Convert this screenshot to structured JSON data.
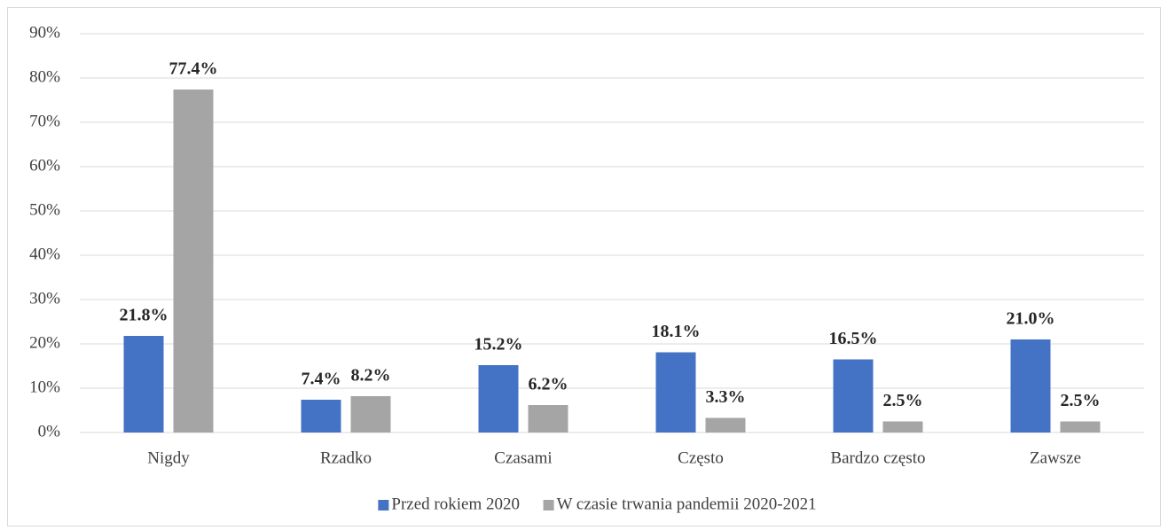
{
  "chart_data": {
    "type": "bar",
    "categories": [
      "Nigdy",
      "Rzadko",
      "Czasami",
      "Często",
      "Bardzo często",
      "Zawsze"
    ],
    "series": [
      {
        "name": "Przed rokiem 2020",
        "color": "#4472c4",
        "values": [
          21.8,
          7.4,
          15.2,
          18.1,
          16.5,
          21.0
        ],
        "value_labels": [
          "21.8%",
          "7.4%",
          "15.2%",
          "18.1%",
          "16.5%",
          "21.0%"
        ]
      },
      {
        "name": "W czasie trwania pandemii 2020-2021",
        "color": "#a5a5a5",
        "values": [
          77.4,
          8.2,
          6.2,
          3.3,
          2.5,
          2.5
        ],
        "value_labels": [
          "77.4%",
          "8.2%",
          "6.2%",
          "3.3%",
          "2.5%",
          "2.5%"
        ]
      }
    ],
    "ylim": [
      0,
      90
    ],
    "yticks": [
      {
        "value": 0,
        "label": "0%"
      },
      {
        "value": 10,
        "label": "10%"
      },
      {
        "value": 20,
        "label": "20%"
      },
      {
        "value": 30,
        "label": "30%"
      },
      {
        "value": 40,
        "label": "40%"
      },
      {
        "value": 50,
        "label": "50%"
      },
      {
        "value": 60,
        "label": "60%"
      },
      {
        "value": 70,
        "label": "70%"
      },
      {
        "value": 80,
        "label": "80%"
      },
      {
        "value": 90,
        "label": "90%"
      }
    ],
    "grid": true,
    "legend": "bottom"
  }
}
